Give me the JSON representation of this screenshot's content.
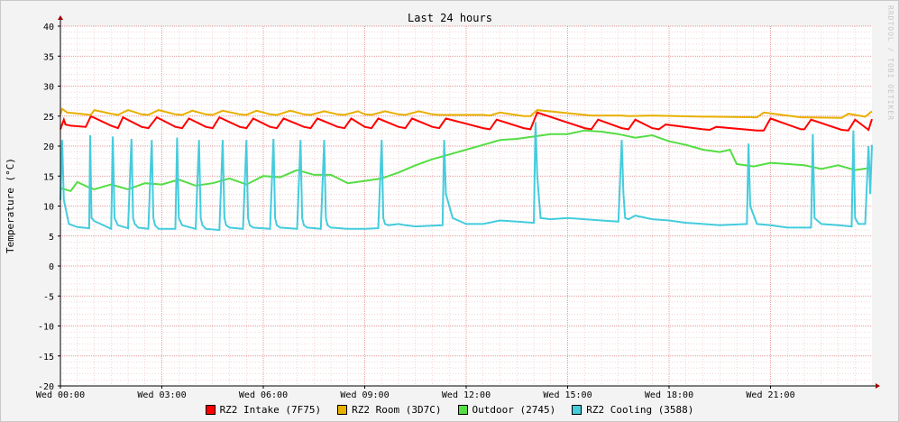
{
  "watermark": "RRDTOOL / TOBI OETIKER",
  "colors": {
    "background": "#f3f3f3",
    "canvas": "#ffffff",
    "grid_minor": "#e8b0b0",
    "grid_major": "#e07a7a"
  },
  "chart_data": {
    "type": "line",
    "title": "Last 24 hours",
    "ylabel": "Temperature (°C)",
    "xlabel": "",
    "ylim": [
      -20,
      40
    ],
    "yticks": [
      40,
      35,
      30,
      25,
      20,
      15,
      10,
      5,
      0,
      -5,
      -10,
      -15,
      -20
    ],
    "xlim": [
      0,
      24
    ],
    "xticks": [
      {
        "x": 0,
        "label": "Wed 00:00"
      },
      {
        "x": 3,
        "label": "Wed 03:00"
      },
      {
        "x": 6,
        "label": "Wed 06:00"
      },
      {
        "x": 9,
        "label": "Wed 09:00"
      },
      {
        "x": 12,
        "label": "Wed 12:00"
      },
      {
        "x": 15,
        "label": "Wed 15:00"
      },
      {
        "x": 18,
        "label": "Wed 18:00"
      },
      {
        "x": 21,
        "label": "Wed 21:00"
      }
    ],
    "grid": true,
    "legend_position": "bottom",
    "series": [
      {
        "name": "RZ2 Intake (7F75)",
        "color": "#ff0000",
        "x": [
          0,
          0.1,
          0.15,
          0.3,
          0.75,
          0.9,
          1.5,
          1.7,
          1.85,
          2.4,
          2.6,
          2.85,
          3.4,
          3.6,
          3.8,
          4.3,
          4.5,
          4.7,
          5.3,
          5.5,
          5.7,
          6.2,
          6.4,
          6.6,
          7.2,
          7.4,
          7.6,
          8.2,
          8.4,
          8.6,
          9.0,
          9.2,
          9.4,
          10.0,
          10.2,
          10.4,
          11.0,
          11.2,
          11.4,
          12.5,
          12.7,
          12.9,
          13.7,
          13.9,
          14.1,
          15.5,
          15.7,
          15.9,
          16.6,
          16.8,
          17.0,
          17.5,
          17.7,
          17.9,
          19.0,
          19.2,
          19.4,
          20.6,
          20.8,
          21.0,
          21.9,
          22.0,
          22.2,
          23.1,
          23.3,
          23.5,
          23.9,
          24.0
        ],
        "y": [
          22.8,
          24.4,
          23.6,
          23.4,
          23.2,
          25.0,
          23.4,
          23.0,
          24.8,
          23.2,
          23.0,
          24.8,
          23.2,
          23.0,
          24.6,
          23.2,
          23.0,
          24.8,
          23.2,
          23.0,
          24.6,
          23.2,
          23.0,
          24.6,
          23.2,
          23.0,
          24.6,
          23.2,
          23.0,
          24.6,
          23.2,
          23.0,
          24.6,
          23.2,
          23.0,
          24.6,
          23.2,
          23.0,
          24.6,
          23.0,
          22.8,
          24.4,
          23.0,
          22.8,
          25.6,
          23.0,
          22.8,
          24.4,
          23.0,
          22.8,
          24.4,
          23.0,
          22.8,
          23.6,
          22.8,
          22.7,
          23.2,
          22.6,
          22.6,
          24.6,
          22.8,
          22.8,
          24.4,
          22.7,
          22.6,
          24.4,
          22.7,
          24.5
        ]
      },
      {
        "name": "RZ2 Room (3D7C)",
        "color": "#e8b000",
        "x": [
          0,
          0.05,
          0.2,
          0.9,
          1.0,
          1.5,
          1.7,
          2.0,
          2.4,
          2.6,
          2.9,
          3.4,
          3.6,
          3.9,
          4.3,
          4.5,
          4.8,
          5.3,
          5.5,
          5.8,
          6.2,
          6.4,
          6.8,
          7.2,
          7.4,
          7.8,
          8.2,
          8.4,
          8.8,
          9.0,
          9.2,
          9.6,
          10.0,
          10.2,
          10.6,
          11.0,
          11.2,
          12.5,
          12.7,
          13.0,
          13.7,
          13.9,
          14.1,
          15.5,
          15.7,
          16.6,
          16.8,
          17.5,
          19.0,
          19.2,
          20.6,
          20.8,
          21.9,
          22.0,
          23.1,
          23.3,
          23.8,
          24.0
        ],
        "y": [
          25.3,
          26.2,
          25.6,
          25.2,
          26.0,
          25.4,
          25.2,
          26.0,
          25.3,
          25.2,
          26.0,
          25.3,
          25.2,
          25.9,
          25.3,
          25.2,
          25.9,
          25.3,
          25.2,
          25.9,
          25.3,
          25.2,
          25.9,
          25.3,
          25.2,
          25.8,
          25.3,
          25.2,
          25.8,
          25.3,
          25.2,
          25.8,
          25.3,
          25.2,
          25.8,
          25.3,
          25.2,
          25.2,
          25.1,
          25.6,
          25.0,
          25.0,
          26.0,
          25.2,
          25.1,
          25.1,
          25.0,
          25.1,
          24.9,
          24.9,
          24.8,
          25.6,
          24.8,
          24.8,
          24.7,
          25.4,
          24.9,
          25.8
        ]
      },
      {
        "name": "Outdoor (2745)",
        "color": "#55dd44",
        "x": [
          0,
          0.3,
          0.5,
          0.8,
          1.0,
          1.5,
          2.0,
          2.5,
          3.0,
          3.5,
          4.0,
          4.5,
          5.0,
          5.5,
          6.0,
          6.5,
          7.0,
          7.5,
          8.0,
          8.5,
          9.0,
          9.5,
          10.0,
          10.5,
          11.0,
          11.5,
          12.0,
          12.5,
          13.0,
          13.5,
          14.0,
          14.5,
          15.0,
          15.5,
          16.0,
          16.5,
          17.0,
          17.5,
          18.0,
          18.5,
          19.0,
          19.5,
          19.8,
          20.0,
          20.5,
          21.0,
          21.5,
          22.0,
          22.5,
          23.0,
          23.5,
          24.0
        ],
        "y": [
          13.0,
          12.5,
          14.0,
          13.2,
          12.8,
          13.6,
          12.8,
          13.8,
          13.6,
          14.4,
          13.4,
          13.8,
          14.6,
          13.6,
          15.0,
          14.8,
          16.0,
          15.2,
          15.2,
          13.8,
          14.2,
          14.6,
          15.6,
          16.8,
          17.8,
          18.6,
          19.4,
          20.2,
          21.0,
          21.2,
          21.6,
          22.0,
          22.0,
          22.6,
          22.4,
          22.0,
          21.4,
          21.8,
          20.8,
          20.2,
          19.4,
          19.0,
          19.4,
          17.0,
          16.6,
          17.2,
          17.0,
          16.8,
          16.2,
          16.8,
          16.0,
          16.4
        ]
      },
      {
        "name": "RZ2 Cooling (3588)",
        "color": "#44ccdd",
        "x": [
          0,
          0.05,
          0.1,
          0.25,
          0.5,
          0.85,
          0.88,
          0.92,
          1.0,
          1.5,
          1.55,
          1.6,
          1.7,
          2.0,
          2.1,
          2.15,
          2.2,
          2.3,
          2.6,
          2.7,
          2.75,
          2.8,
          2.9,
          3.4,
          3.45,
          3.5,
          3.6,
          4.0,
          4.1,
          4.15,
          4.2,
          4.3,
          4.7,
          4.8,
          4.85,
          4.9,
          5.0,
          5.4,
          5.5,
          5.55,
          5.6,
          5.7,
          6.2,
          6.3,
          6.35,
          6.4,
          6.5,
          7.0,
          7.1,
          7.15,
          7.2,
          7.3,
          7.7,
          7.8,
          7.85,
          7.9,
          8.0,
          8.5,
          9.0,
          9.4,
          9.5,
          9.55,
          9.6,
          9.7,
          10.0,
          10.2,
          10.5,
          11.3,
          11.35,
          11.4,
          11.6,
          12.0,
          12.5,
          13.0,
          13.5,
          14.0,
          14.05,
          14.1,
          14.2,
          14.5,
          15.0,
          15.5,
          16.0,
          16.5,
          16.6,
          16.65,
          16.7,
          16.8,
          17.0,
          17.5,
          18.0,
          18.5,
          19.0,
          19.5,
          20.3,
          20.35,
          20.4,
          20.6,
          21.0,
          21.5,
          22.2,
          22.25,
          22.3,
          22.5,
          23.0,
          23.4,
          23.45,
          23.5,
          23.6,
          23.8,
          23.9,
          23.95,
          24.0
        ],
        "y": [
          11.0,
          21.0,
          11.0,
          7.0,
          6.5,
          6.3,
          21.8,
          8.0,
          7.5,
          6.2,
          21.6,
          8.0,
          6.8,
          6.3,
          21.2,
          8.0,
          7.0,
          6.4,
          6.2,
          21.0,
          8.0,
          6.8,
          6.2,
          6.2,
          21.4,
          8.0,
          6.8,
          6.2,
          21.0,
          8.0,
          6.8,
          6.2,
          6.0,
          21.0,
          8.0,
          6.8,
          6.4,
          6.2,
          21.0,
          8.0,
          6.8,
          6.4,
          6.2,
          21.2,
          8.0,
          6.8,
          6.4,
          6.2,
          21.0,
          8.0,
          6.8,
          6.4,
          6.2,
          21.0,
          8.0,
          6.8,
          6.4,
          6.2,
          6.2,
          6.3,
          21.0,
          8.0,
          7.0,
          6.8,
          7.0,
          6.8,
          6.6,
          6.8,
          21.0,
          12.0,
          8.0,
          7.0,
          7.0,
          7.6,
          7.4,
          7.2,
          24.0,
          15.0,
          8.0,
          7.8,
          8.0,
          7.8,
          7.6,
          7.4,
          21.0,
          12.0,
          8.0,
          7.8,
          8.4,
          7.8,
          7.6,
          7.2,
          7.0,
          6.8,
          7.0,
          20.4,
          10.0,
          7.0,
          6.8,
          6.4,
          6.4,
          22.0,
          8.0,
          7.0,
          6.8,
          6.6,
          22.6,
          8.0,
          7.0,
          7.0,
          20.0,
          12.0,
          20.2
        ]
      }
    ]
  }
}
